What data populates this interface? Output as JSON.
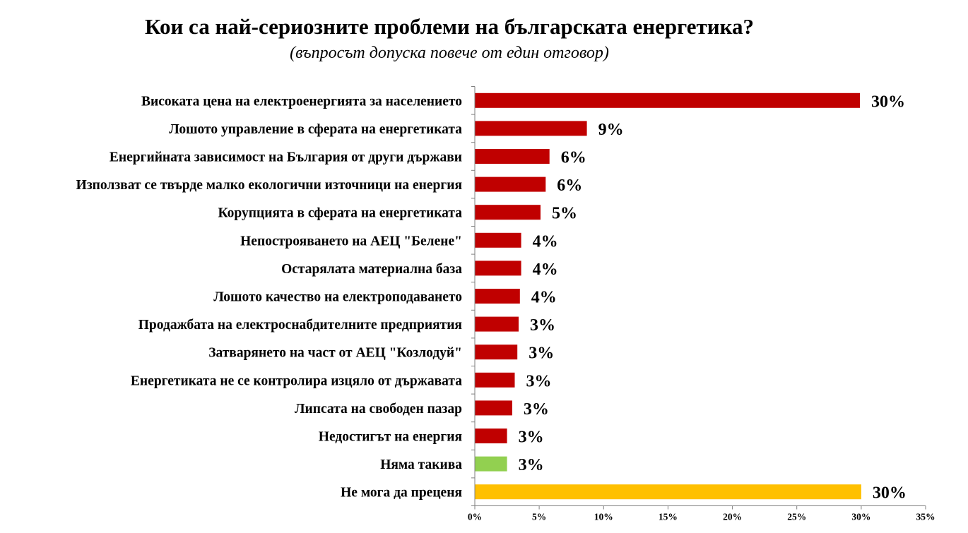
{
  "chart_data": {
    "type": "bar",
    "orientation": "horizontal",
    "title": "Кои са най-сериозните проблеми на българската енергетика?",
    "subtitle": "(въпросът допуска повече от един отговор)",
    "categories": [
      "Високата цена на електроенергията за населението",
      "Лошото управление в сферата на енергетиката",
      "Енергийната зависимост на България от други държави",
      "Използват се твърде малко екологични източници на енергия",
      "Корупцията в сферата на енергетиката",
      "Непострояването на АЕЦ \"Белене\"",
      "Остарялата материална база",
      "Лошото качество на електроподаването",
      "Продажбата на електроснабдителните предприятия",
      "Затварянето на част от АЕЦ \"Козлодуй\"",
      "Енергетиката не се контролира изцяло от държавата",
      "Липсата на свободен пазар",
      "Недостигът на енергия",
      "Няма такива",
      "Не мога да преценя"
    ],
    "values": [
      29.9,
      8.7,
      5.8,
      5.5,
      5.1,
      3.6,
      3.6,
      3.5,
      3.4,
      3.3,
      3.1,
      2.9,
      2.5,
      2.5,
      30.0
    ],
    "value_labels": [
      "30%",
      "9%",
      "6%",
      "6%",
      "5%",
      "4%",
      "4%",
      "4%",
      "3%",
      "3%",
      "3%",
      "3%",
      "3%",
      "3%",
      "30%"
    ],
    "bar_colors": [
      "#c00000",
      "#c00000",
      "#c00000",
      "#c00000",
      "#c00000",
      "#c00000",
      "#c00000",
      "#c00000",
      "#c00000",
      "#c00000",
      "#c00000",
      "#c00000",
      "#c00000",
      "#92d050",
      "#ffc000"
    ],
    "xlim": [
      0,
      35
    ],
    "xticks": [
      0,
      5,
      10,
      15,
      20,
      25,
      30,
      35
    ],
    "xtick_labels": [
      "0%",
      "5%",
      "10%",
      "15%",
      "20%",
      "25%",
      "30%",
      "35%"
    ],
    "grid": false,
    "legend": "none"
  }
}
